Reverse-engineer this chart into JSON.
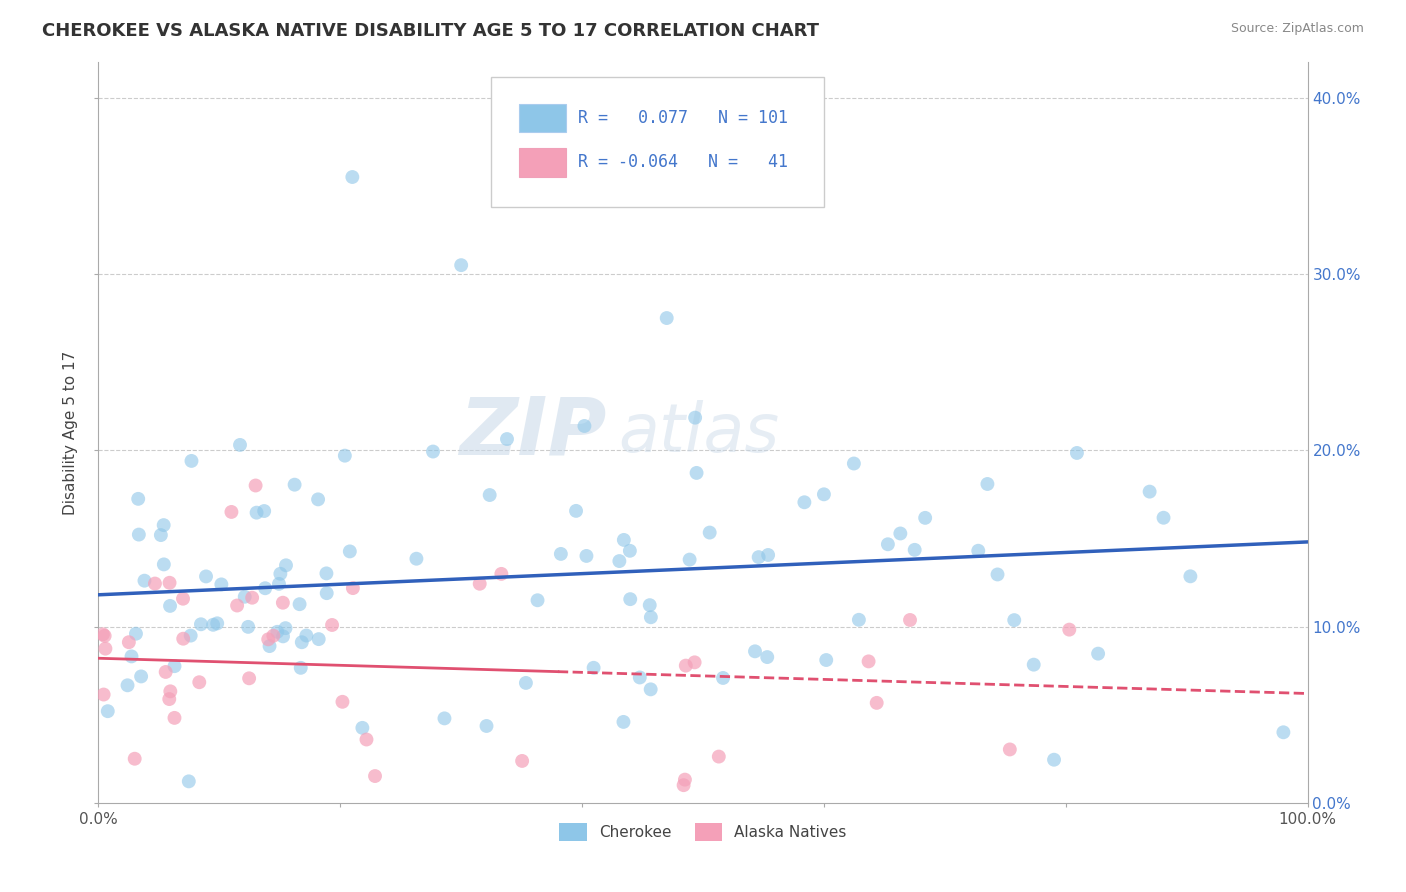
{
  "title": "CHEROKEE VS ALASKA NATIVE DISABILITY AGE 5 TO 17 CORRELATION CHART",
  "source": "Source: ZipAtlas.com",
  "ylabel": "Disability Age 5 to 17",
  "xlim": [
    0.0,
    1.0
  ],
  "ylim": [
    0.0,
    0.42
  ],
  "x_ticks": [
    0.0,
    0.2,
    0.4,
    0.6,
    0.8,
    1.0
  ],
  "x_tick_labels": [
    "0.0%",
    "",
    "",
    "",
    "",
    "100.0%"
  ],
  "y_ticks": [
    0.0,
    0.1,
    0.2,
    0.3,
    0.4
  ],
  "y_tick_labels_right": [
    "0.0%",
    "10.0%",
    "20.0%",
    "30.0%",
    "40.0%"
  ],
  "cherokee_R": 0.077,
  "cherokee_N": 101,
  "alaska_R": -0.064,
  "alaska_N": 41,
  "cherokee_color": "#8ec6e8",
  "alaska_color": "#f4a0b8",
  "cherokee_line_color": "#3060bb",
  "alaska_line_color": "#e05070",
  "watermark": "ZIPatlas",
  "legend_labels": [
    "Cherokee",
    "Alaska Natives"
  ],
  "cherokee_line_x0": 0.0,
  "cherokee_line_y0": 0.118,
  "cherokee_line_x1": 1.0,
  "cherokee_line_y1": 0.148,
  "alaska_line_x0": 0.0,
  "alaska_line_y0": 0.082,
  "alaska_line_x1": 1.0,
  "alaska_line_y1": 0.062
}
